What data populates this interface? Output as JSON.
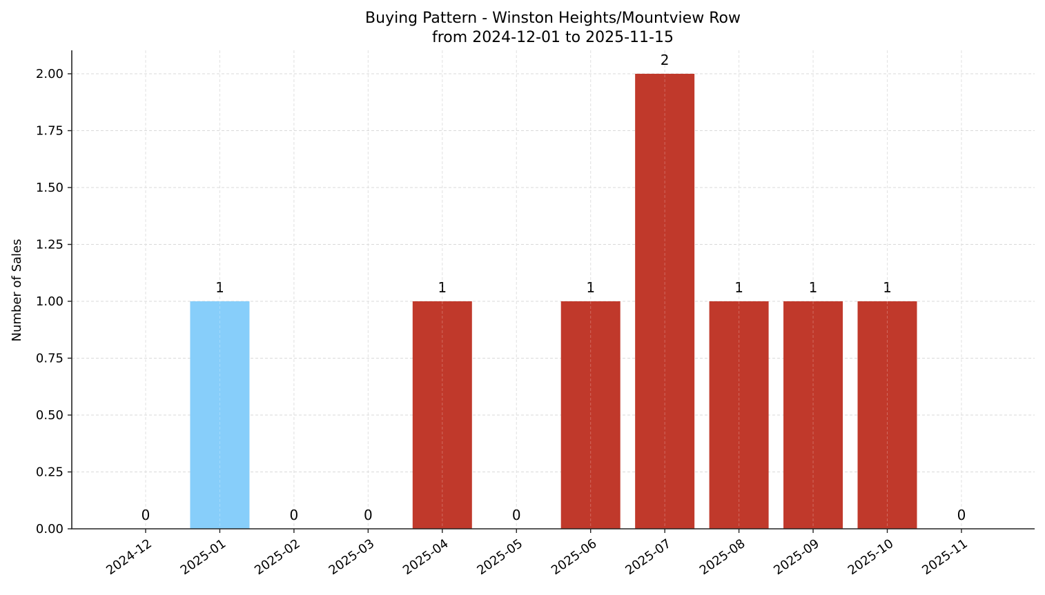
{
  "chart_data": {
    "type": "bar",
    "title": "Buying Pattern - Winston Heights/Mountview Row",
    "subtitle": "from 2024-12-01 to 2025-11-15",
    "xlabel": "",
    "ylabel": "Number of Sales",
    "categories": [
      "2024-12",
      "2025-01",
      "2025-02",
      "2025-03",
      "2025-04",
      "2025-05",
      "2025-06",
      "2025-07",
      "2025-08",
      "2025-09",
      "2025-10",
      "2025-11"
    ],
    "values": [
      0,
      1,
      0,
      0,
      1,
      0,
      1,
      2,
      1,
      1,
      1,
      0
    ],
    "bar_colors": [
      "#C0392B",
      "#87CEFA",
      "#C0392B",
      "#C0392B",
      "#C0392B",
      "#C0392B",
      "#C0392B",
      "#C0392B",
      "#C0392B",
      "#C0392B",
      "#C0392B",
      "#C0392B"
    ],
    "data_labels": [
      "0",
      "1",
      "0",
      "0",
      "1",
      "0",
      "1",
      "2",
      "1",
      "1",
      "1",
      "0"
    ],
    "ylim": [
      0,
      2.1
    ],
    "yticks": [
      0.0,
      0.25,
      0.5,
      0.75,
      1.0,
      1.25,
      1.5,
      1.75,
      2.0
    ],
    "ytick_labels": [
      "0.00",
      "0.25",
      "0.50",
      "0.75",
      "1.00",
      "1.25",
      "1.50",
      "1.75",
      "2.00"
    ],
    "grid": true,
    "grid_style": "dashed",
    "legend": null,
    "xtick_rotation": 35
  },
  "colors": {
    "highlight": "#87CEFA",
    "default": "#C0392B",
    "grid": "#d9d9d9",
    "axis": "#222222"
  }
}
